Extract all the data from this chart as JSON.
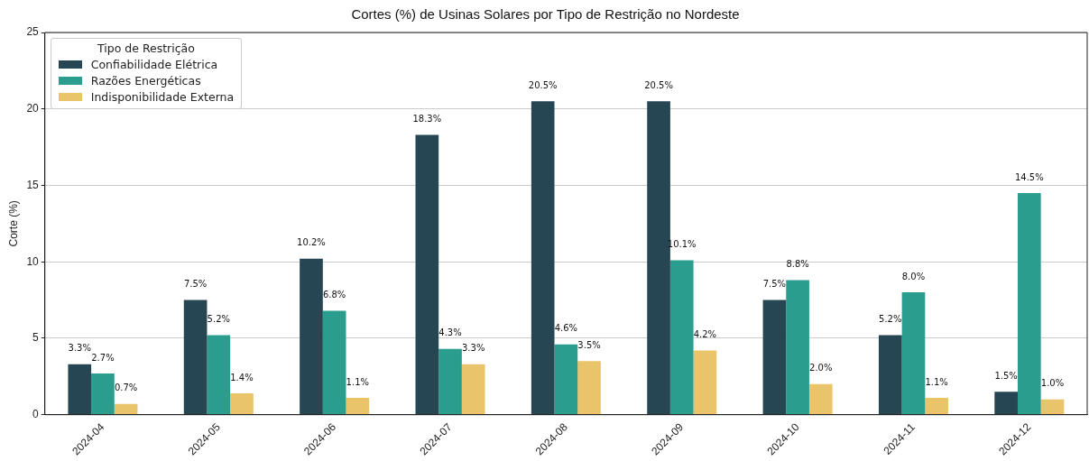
{
  "chart_data": {
    "type": "bar",
    "title": "Cortes (%) de Usinas Solares por Tipo de Restrição no Nordeste",
    "ylabel": "Corte (%)",
    "legend_title": "Tipo de Restrição",
    "categories": [
      "2024-04",
      "2024-05",
      "2024-06",
      "2024-07",
      "2024-08",
      "2024-09",
      "2024-10",
      "2024-11",
      "2024-12"
    ],
    "series": [
      {
        "name": "Confiabilidade Elétrica",
        "color": "#264653",
        "values": [
          3.3,
          7.5,
          10.2,
          18.3,
          20.5,
          20.5,
          7.5,
          5.2,
          1.5
        ],
        "value_labels": [
          "3.3%",
          "7.5%",
          "10.2%",
          "18.3%",
          "20.5%",
          "20.5%",
          "7.5%",
          "5.2%",
          "1.5%"
        ]
      },
      {
        "name": "Razões Energéticas",
        "color": "#2a9d8f",
        "values": [
          2.7,
          5.2,
          6.8,
          4.3,
          4.6,
          10.1,
          8.8,
          8.0,
          14.5
        ],
        "value_labels": [
          "2.7%",
          "5.2%",
          "6.8%",
          "4.3%",
          "4.6%",
          "10.1%",
          "8.8%",
          "8.0%",
          "14.5%"
        ]
      },
      {
        "name": "Indisponibilidade Externa",
        "color": "#e9c46a",
        "values": [
          0.7,
          1.4,
          1.1,
          3.3,
          3.5,
          4.2,
          2.0,
          1.1,
          1.0
        ],
        "value_labels": [
          "0.7%",
          "1.4%",
          "1.1%",
          "3.3%",
          "3.5%",
          "4.2%",
          "2.0%",
          "1.1%",
          "1.0%"
        ]
      }
    ],
    "ylim": [
      0,
      25
    ],
    "yticks": [
      0,
      5,
      10,
      15,
      20,
      25
    ],
    "grid": "y",
    "legend": "top left"
  }
}
